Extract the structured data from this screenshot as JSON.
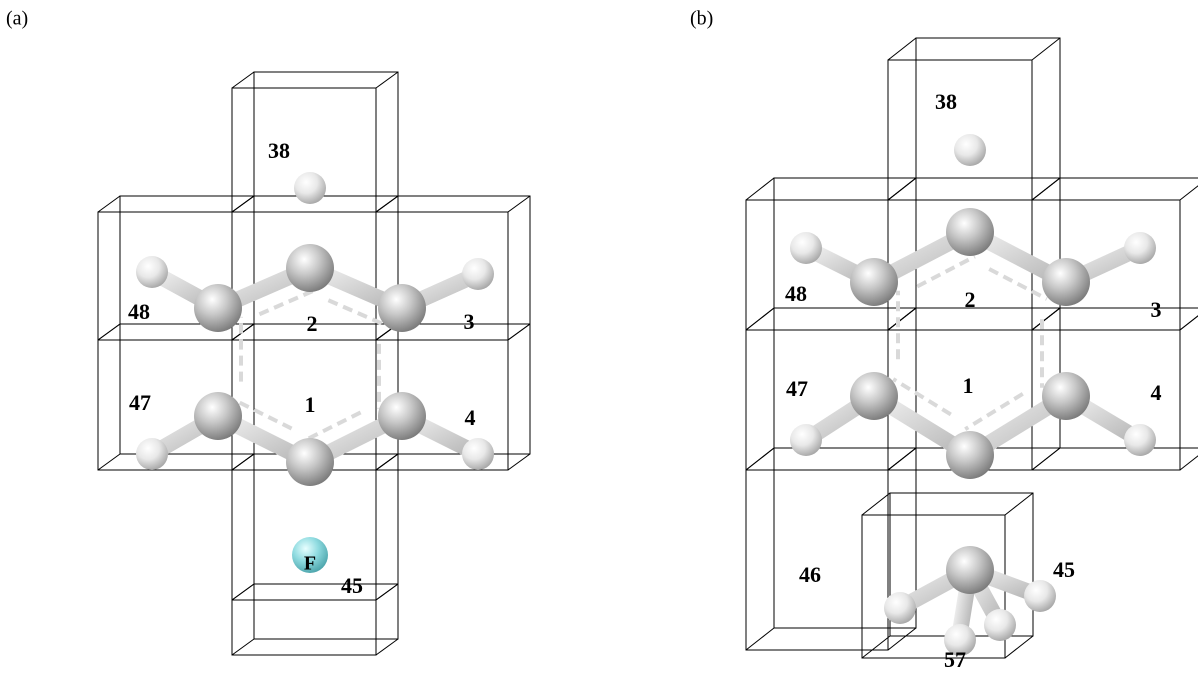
{
  "panels": [
    {
      "label": "(a)",
      "cells": [
        "38",
        "48",
        "2",
        "3",
        "47",
        "1",
        "4",
        "45"
      ],
      "atom": "F"
    },
    {
      "label": "(b)",
      "cells": [
        "38",
        "48",
        "2",
        "3",
        "47",
        "1",
        "4",
        "46",
        "45",
        "57"
      ]
    }
  ]
}
